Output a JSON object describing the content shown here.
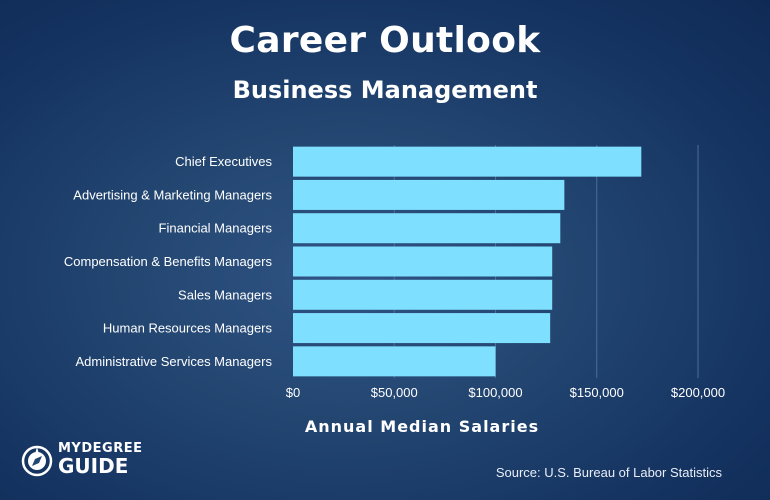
{
  "header": {
    "title": "Career Outlook",
    "subtitle": "Business Management"
  },
  "logo": {
    "line1": "MYDEGREE",
    "line2": "GUIDE",
    "icon": "compass-icon"
  },
  "source": "Source: U.S. Bureau of Labor Statistics",
  "colors": {
    "bar": "#7fdfff",
    "grid": "#4a6d99",
    "text": "#ffffff"
  },
  "chart_data": {
    "type": "bar",
    "orientation": "horizontal",
    "categories": [
      "Chief Executives",
      "Advertising & Marketing Managers",
      "Financial Managers",
      "Compensation & Benefits Managers",
      "Sales Managers",
      "Human Resources Managers",
      "Administrative Services Managers"
    ],
    "values": [
      172000,
      134000,
      132000,
      128000,
      128000,
      127000,
      100000
    ],
    "xlabel": "Annual Median Salaries",
    "xlim": [
      0,
      200000
    ],
    "xticks": [
      0,
      50000,
      100000,
      150000,
      200000
    ],
    "xtick_labels": [
      "$0",
      "$50,000",
      "$100,000",
      "$150,000",
      "$200,000"
    ],
    "grid": "vertical",
    "legend": "none"
  }
}
